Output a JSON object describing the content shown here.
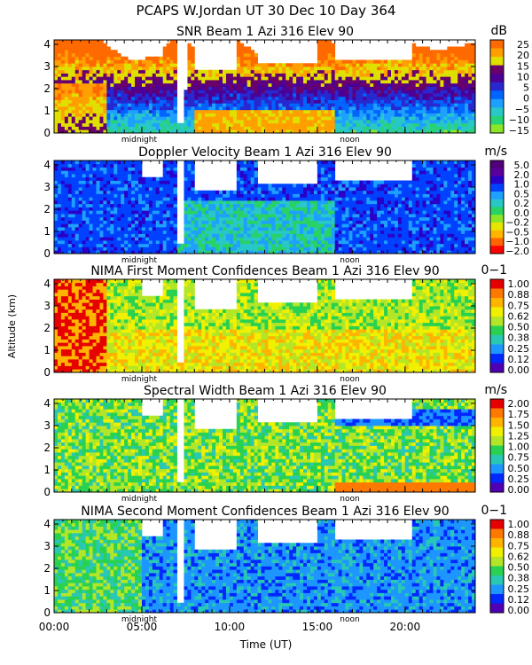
{
  "header": {
    "title": "PCAPS W.Jordan UT  30 Dec 10 Day 364"
  },
  "axes": {
    "ylabel": "Altitude (km)",
    "xlabel": "Time (UT)",
    "x_ticks": [
      "00:00",
      "05:00",
      "10:00",
      "15:00",
      "20:00"
    ],
    "x_tick_hours": [
      0,
      5,
      10,
      15,
      20
    ],
    "x_range_hours": [
      0,
      24
    ],
    "y_ticks": [
      "0",
      "1",
      "2",
      "3",
      "4"
    ],
    "y_range_km": [
      0,
      4.2
    ],
    "markers": [
      {
        "label": "midnight",
        "hour": 4.85
      },
      {
        "label": "noon",
        "hour": 16.85
      }
    ]
  },
  "chart_data": [
    {
      "type": "heatmap",
      "title": "SNR Beam 1 Azi 316 Elev 90",
      "unit": "dB",
      "colorbar_ticks": [
        "25",
        "20",
        "15",
        "10",
        "5",
        "0",
        "−5",
        "−10",
        "−15"
      ],
      "colors": [
        "#ff6a00",
        "#ff9f00",
        "#e0e000",
        "#6a006a",
        "#4b0096",
        "#2828d0",
        "#0064ff",
        "#1ea0ff",
        "#28c8c8",
        "#28d278",
        "#8ce628"
      ]
    },
    {
      "type": "heatmap",
      "title": "Doppler Velocity Beam 1 Azi 316 Elev 90",
      "unit": "m/s",
      "colorbar_ticks": [
        "5.0",
        "2.0",
        "1.0",
        "0.5",
        "0.2",
        "0.0",
        "−0.2",
        "−0.5",
        "−1.0",
        "−2.0"
      ],
      "colors": [
        "#500078",
        "#5a009a",
        "#2a00c8",
        "#0040ff",
        "#1ea0ff",
        "#28c8c8",
        "#28d264",
        "#8ce628",
        "#e6e600",
        "#ffb400",
        "#ff6400",
        "#ff0000"
      ]
    },
    {
      "type": "heatmap",
      "title": "NIMA First Moment Confidences Beam 1 Azi 316 Elev 90",
      "unit": "0−1",
      "colorbar_ticks": [
        "1.00",
        "0.88",
        "0.75",
        "0.62",
        "0.50",
        "0.38",
        "0.25",
        "0.12",
        "0.00"
      ],
      "colors": [
        "#e60000",
        "#ff7800",
        "#ffb400",
        "#f0f000",
        "#b4e628",
        "#28d250",
        "#28c8b4",
        "#1e96ff",
        "#0028ff",
        "#5000b4"
      ]
    },
    {
      "type": "heatmap",
      "title": "Spectral Width Beam 1 Azi 316 Elev 90",
      "unit": "m/s",
      "colorbar_ticks": [
        "2.00",
        "1.75",
        "1.50",
        "1.25",
        "1.00",
        "0.75",
        "0.50",
        "0.25",
        "0.00"
      ],
      "colors": [
        "#e60000",
        "#ff7800",
        "#ffb400",
        "#f0f000",
        "#b4e628",
        "#28d250",
        "#28c8b4",
        "#1e96ff",
        "#0028ff",
        "#5000b4"
      ]
    },
    {
      "type": "heatmap",
      "title": "NIMA Second Moment Confidences Beam 1 Azi 316 Elev 90",
      "unit": "0−1",
      "colorbar_ticks": [
        "1.00",
        "0.88",
        "0.75",
        "0.62",
        "0.50",
        "0.38",
        "0.25",
        "0.12",
        "0.00"
      ],
      "colors": [
        "#e60000",
        "#ff7800",
        "#ffb400",
        "#f0f000",
        "#b4e628",
        "#28d250",
        "#28c8b4",
        "#1e96ff",
        "#0028ff",
        "#5000b4"
      ]
    }
  ]
}
